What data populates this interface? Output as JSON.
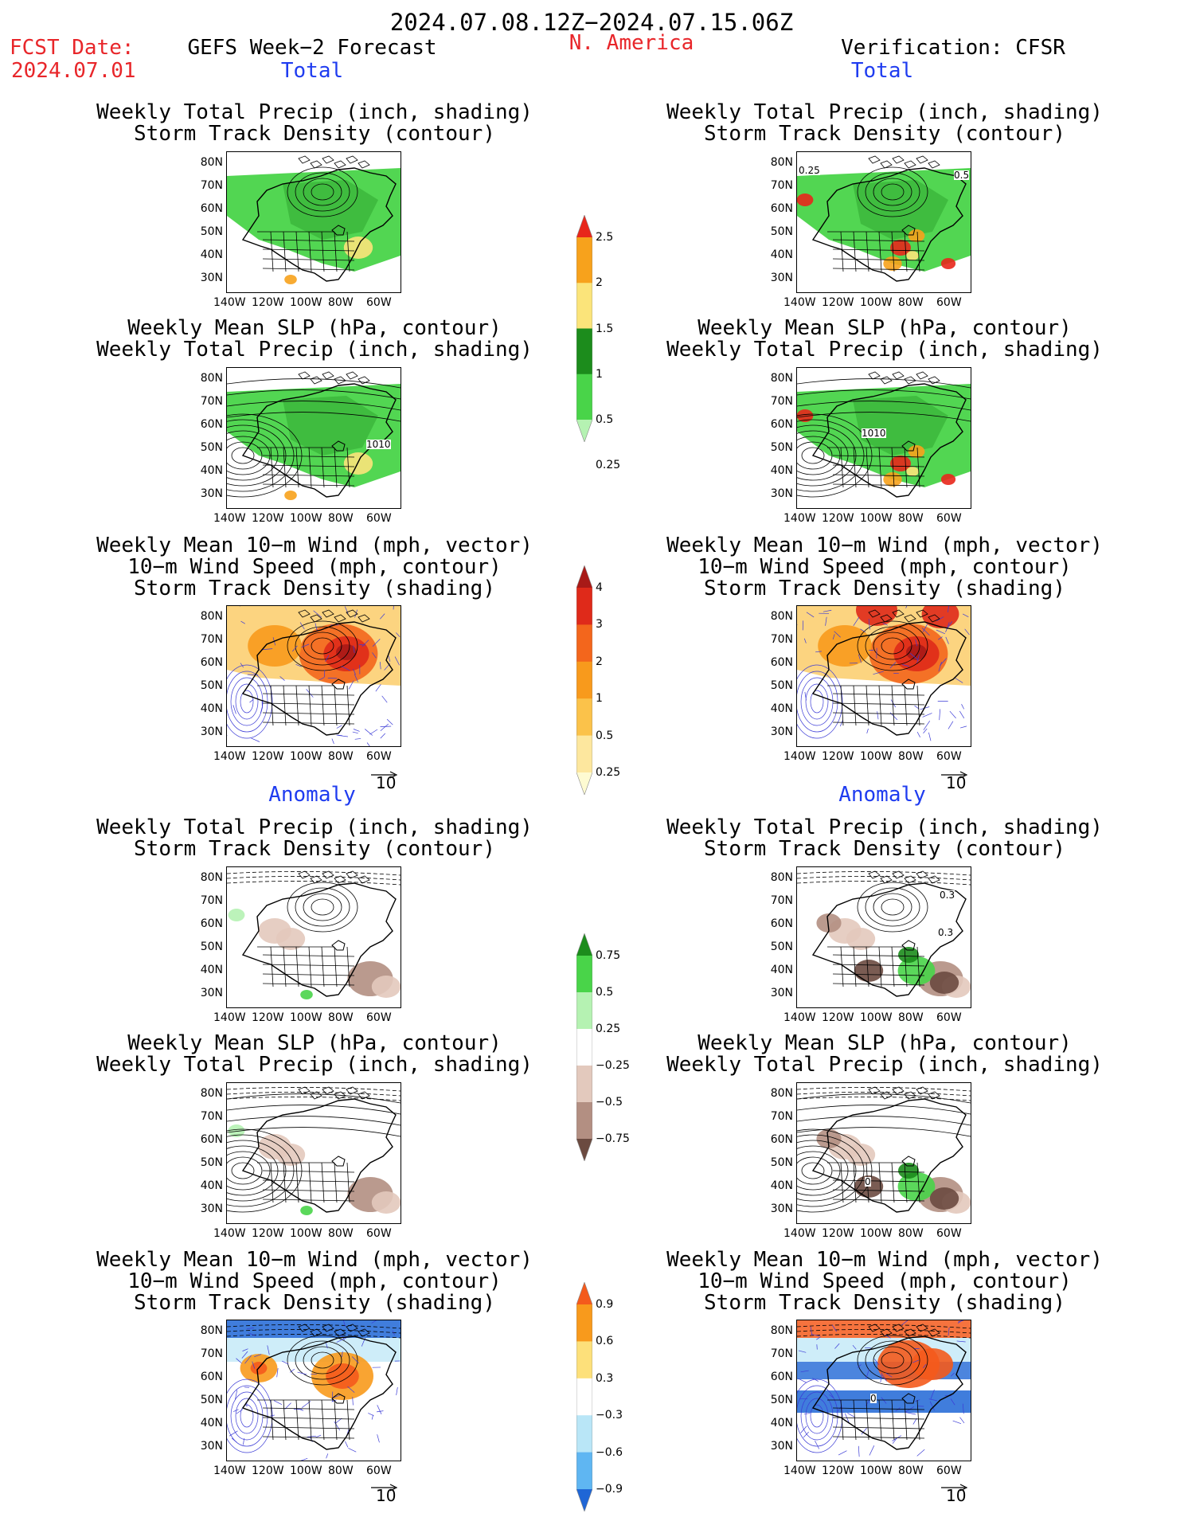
{
  "header": {
    "period": "2024.07.08.12Z−2024.07.15.06Z",
    "fcst_label": "FCST Date:",
    "fcst_date": "2024.07.01",
    "model": "GEFS Week−2 Forecast",
    "region": "N. America",
    "verification": "Verification: CFSR"
  },
  "sections": {
    "total": "Total",
    "anomaly": "Anomaly"
  },
  "titles": {
    "precip_track": [
      "Weekly Total Precip (inch, shading)",
      "Storm Track Density (contour)"
    ],
    "slp_precip": [
      "Weekly Mean SLP (hPa, contour)",
      "Weekly Total Precip (inch, shading)"
    ],
    "wind_track": [
      "Weekly Mean 10−m Wind (mph, vector)",
      "10−m Wind Speed (mph, contour)",
      "Storm Track Density (shading)"
    ]
  },
  "axes": {
    "lat_ticks": [
      "80N",
      "70N",
      "60N",
      "50N",
      "40N",
      "30N"
    ],
    "lon_ticks": [
      "140W",
      "120W",
      "100W",
      "80W",
      "60W"
    ]
  },
  "map_labels": {
    "p1_right": [
      "0.25",
      "0.5"
    ],
    "p2_left": "1010",
    "p2_right": "1010",
    "p4_right": [
      "0.3",
      "0.3"
    ],
    "p5_right": "0",
    "p6_right": "0"
  },
  "vector_reference": "10",
  "colorbars": {
    "precip_total": {
      "labels": [
        "2.5",
        "2",
        "1.5",
        "1",
        "0.5",
        "0.25"
      ],
      "colors": [
        "#e8271b",
        "#f7a21c",
        "#fbe47a",
        "#1c8c1c",
        "#49d449",
        "#b5f2b2"
      ]
    },
    "track_total": {
      "labels": [
        "4",
        "3",
        "2",
        "1",
        "0.5",
        "0.25"
      ],
      "colors": [
        "#a81a17",
        "#df2a1a",
        "#f3661c",
        "#f89a1c",
        "#fbc24a",
        "#fde79e",
        "#fefbd2"
      ]
    },
    "precip_anom": {
      "labels": [
        "0.75",
        "0.5",
        "0.25",
        "−0.25",
        "−0.5",
        "−0.75"
      ],
      "colors": [
        "#1c8c1c",
        "#49d449",
        "#b5f2b2",
        "#ffffff",
        "#e3c9bd",
        "#b38f82",
        "#6b4a40"
      ]
    },
    "track_anom": {
      "labels": [
        "0.9",
        "0.6",
        "0.3",
        "−0.3",
        "−0.6",
        "−0.9"
      ],
      "colors": [
        "#f45a1c",
        "#f89a1c",
        "#fde07a",
        "#ffffff",
        "#b9e6f7",
        "#5fb6f2",
        "#1f66d6"
      ]
    }
  }
}
